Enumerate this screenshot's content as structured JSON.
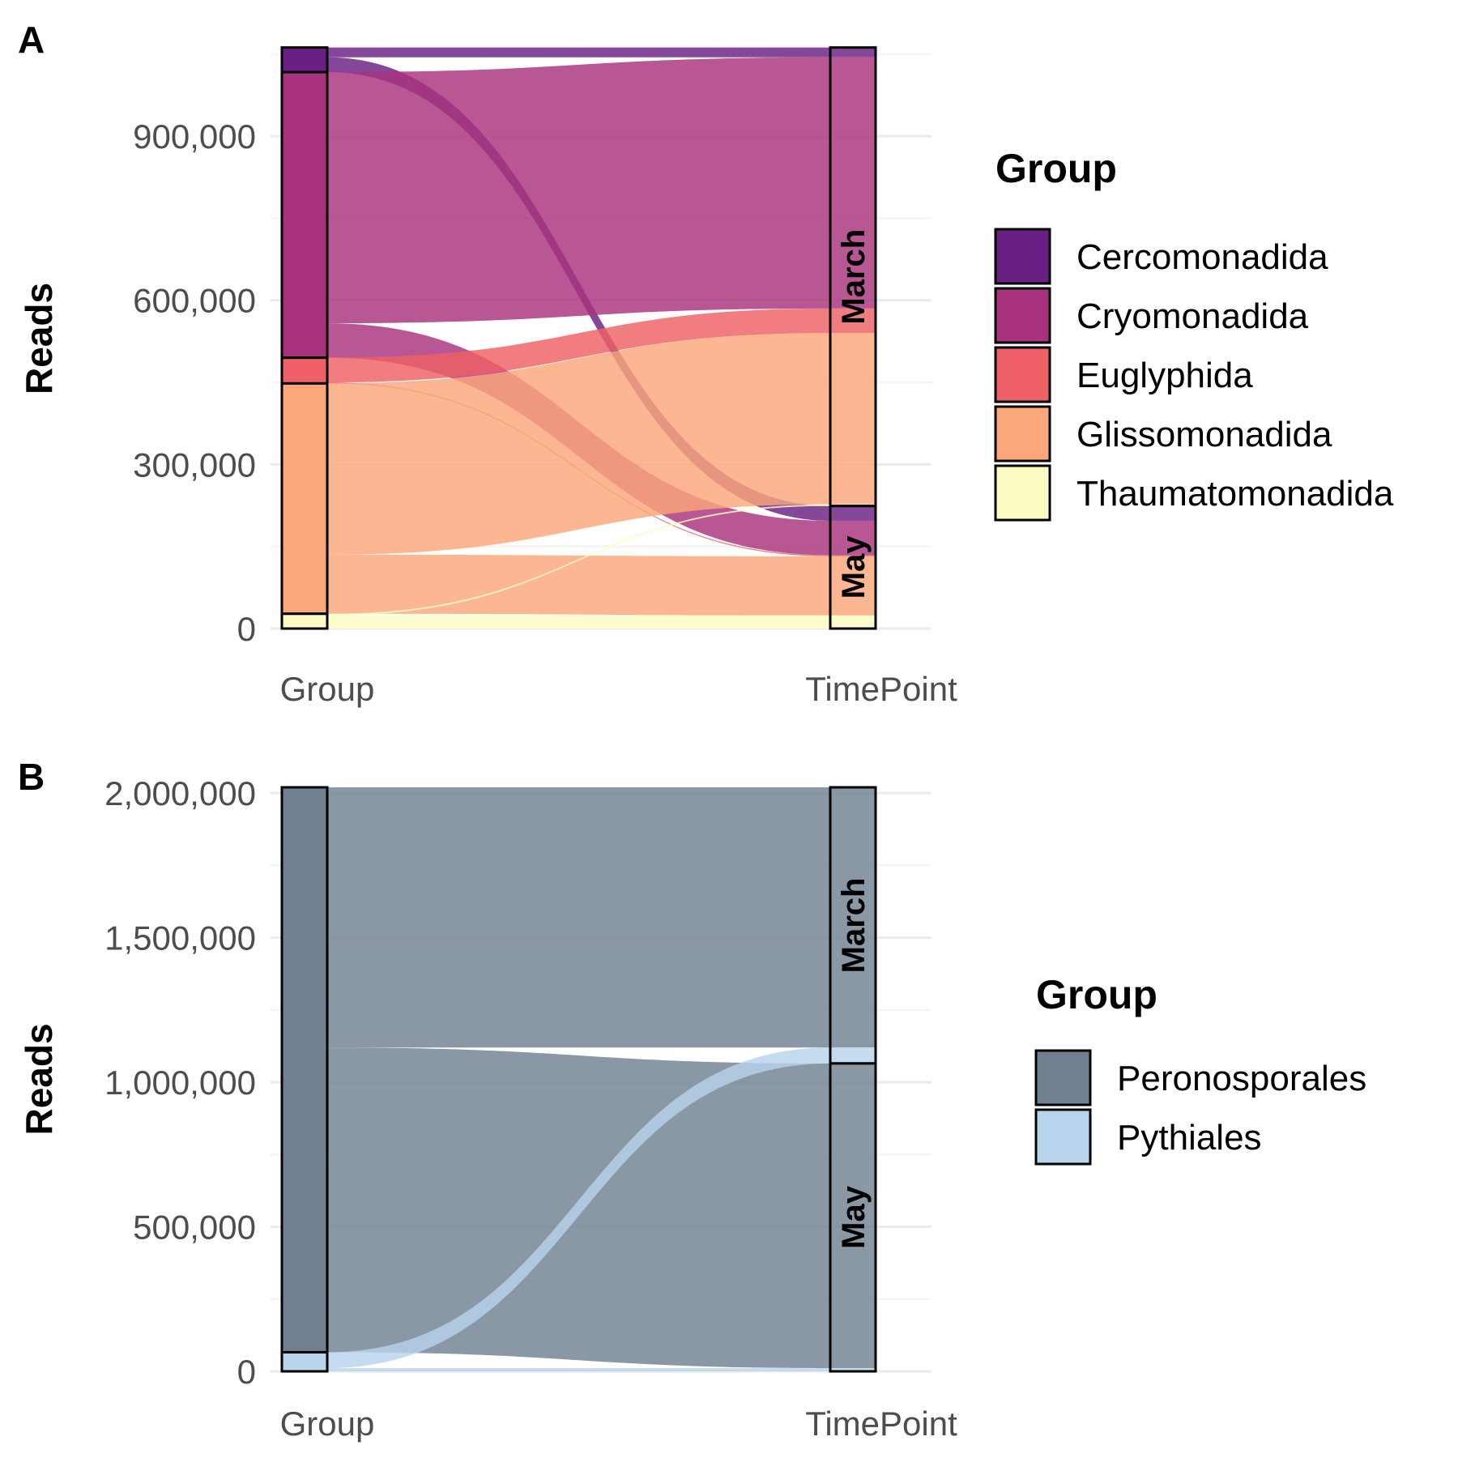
{
  "chart_data": [
    {
      "type": "alluvial",
      "panel_label": "A",
      "ylabel": "Reads",
      "ylim": [
        0,
        1060000
      ],
      "y_ticks": [
        0,
        300000,
        600000,
        900000
      ],
      "y_tick_labels": [
        "0",
        "300,000",
        "600,000",
        "900,000"
      ],
      "axes": [
        "Group",
        "TimePoint"
      ],
      "legend_title": "Group",
      "groups": [
        {
          "name": "Cercomonadida",
          "color": "#6a1f84"
        },
        {
          "name": "Cryomonadida",
          "color": "#a8327c"
        },
        {
          "name": "Euglyphida",
          "color": "#ee6065"
        },
        {
          "name": "Glissomonadida",
          "color": "#fba77a"
        },
        {
          "name": "Thaumatomonadida",
          "color": "#fcfcc2"
        }
      ],
      "timepoints": [
        "March",
        "May"
      ],
      "flows": [
        {
          "group": "Cercomonadida",
          "timepoint": "March",
          "value": 18000
        },
        {
          "group": "Cercomonadida",
          "timepoint": "May",
          "value": 27000
        },
        {
          "group": "Cryomonadida",
          "timepoint": "March",
          "value": 459000
        },
        {
          "group": "Cryomonadida",
          "timepoint": "May",
          "value": 63000
        },
        {
          "group": "Euglyphida",
          "timepoint": "March",
          "value": 45000
        },
        {
          "group": "Euglyphida",
          "timepoint": "May",
          "value": 2000
        },
        {
          "group": "Glissomonadida",
          "timepoint": "March",
          "value": 313000
        },
        {
          "group": "Glissomonadida",
          "timepoint": "May",
          "value": 108000
        },
        {
          "group": "Thaumatomonadida",
          "timepoint": "March",
          "value": 3000
        },
        {
          "group": "Thaumatomonadida",
          "timepoint": "May",
          "value": 24000
        }
      ]
    },
    {
      "type": "alluvial",
      "panel_label": "B",
      "ylabel": "Reads",
      "ylim": [
        0,
        2020000
      ],
      "y_ticks": [
        0,
        500000,
        1000000,
        1500000,
        2000000
      ],
      "y_tick_labels": [
        "0",
        "500,000",
        "1,000,000",
        "1,500,000",
        "2,000,000"
      ],
      "axes": [
        "Group",
        "TimePoint"
      ],
      "legend_title": "Group",
      "groups": [
        {
          "name": "Peronosporales",
          "color": "#708090"
        },
        {
          "name": "Pythiales",
          "color": "#b8d3ec"
        }
      ],
      "timepoints": [
        "March",
        "May"
      ],
      "flows": [
        {
          "group": "Peronosporales",
          "timepoint": "March",
          "value": 900000
        },
        {
          "group": "Peronosporales",
          "timepoint": "May",
          "value": 1054000
        },
        {
          "group": "Pythiales",
          "timepoint": "March",
          "value": 55000
        },
        {
          "group": "Pythiales",
          "timepoint": "May",
          "value": 11000
        }
      ]
    }
  ]
}
